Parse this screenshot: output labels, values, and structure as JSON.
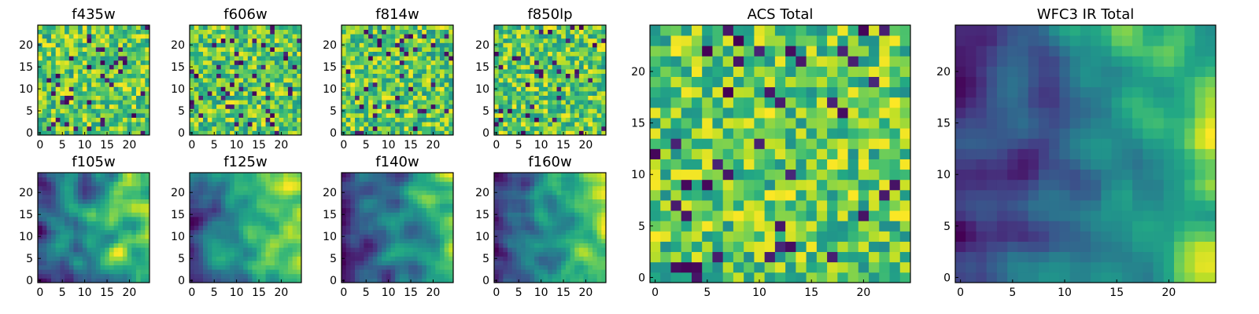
{
  "chart_data": [
    {
      "type": "heatmap",
      "title": "f435w",
      "xlim": [
        -0.5,
        24.5
      ],
      "ylim": [
        -0.5,
        24.5
      ],
      "xticks": [
        0,
        5,
        10,
        15,
        20
      ],
      "yticks": [
        0,
        5,
        10,
        15,
        20
      ],
      "grid_size": [
        25,
        25
      ],
      "colormap": "viridis",
      "value_range": [
        0,
        1
      ],
      "smoothness": "noisy",
      "seed": 11,
      "values": []
    },
    {
      "type": "heatmap",
      "title": "f606w",
      "xlim": [
        -0.5,
        24.5
      ],
      "ylim": [
        -0.5,
        24.5
      ],
      "xticks": [
        0,
        5,
        10,
        15,
        20
      ],
      "yticks": [
        0,
        5,
        10,
        15,
        20
      ],
      "grid_size": [
        25,
        25
      ],
      "colormap": "viridis",
      "value_range": [
        0,
        1
      ],
      "smoothness": "noisy",
      "seed": 23,
      "values": []
    },
    {
      "type": "heatmap",
      "title": "f814w",
      "xlim": [
        -0.5,
        24.5
      ],
      "ylim": [
        -0.5,
        24.5
      ],
      "xticks": [
        0,
        5,
        10,
        15,
        20
      ],
      "yticks": [
        0,
        5,
        10,
        15,
        20
      ],
      "grid_size": [
        25,
        25
      ],
      "colormap": "viridis",
      "value_range": [
        0,
        1
      ],
      "smoothness": "noisy",
      "seed": 37,
      "values": []
    },
    {
      "type": "heatmap",
      "title": "f850lp",
      "xlim": [
        -0.5,
        24.5
      ],
      "ylim": [
        -0.5,
        24.5
      ],
      "xticks": [
        0,
        5,
        10,
        15,
        20
      ],
      "yticks": [
        0,
        5,
        10,
        15,
        20
      ],
      "grid_size": [
        25,
        25
      ],
      "colormap": "viridis",
      "value_range": [
        0,
        1
      ],
      "smoothness": "noisy",
      "seed": 41,
      "values": []
    },
    {
      "type": "heatmap",
      "title": "f105w",
      "xlim": [
        -0.5,
        24.5
      ],
      "ylim": [
        -0.5,
        24.5
      ],
      "xticks": [
        0,
        5,
        10,
        15,
        20
      ],
      "yticks": [
        0,
        5,
        10,
        15,
        20
      ],
      "grid_size": [
        25,
        25
      ],
      "colormap": "viridis",
      "value_range": [
        0,
        1
      ],
      "smoothness": "smooth",
      "seed": 53,
      "values": []
    },
    {
      "type": "heatmap",
      "title": "f125w",
      "xlim": [
        -0.5,
        24.5
      ],
      "ylim": [
        -0.5,
        24.5
      ],
      "xticks": [
        0,
        5,
        10,
        15,
        20
      ],
      "yticks": [
        0,
        5,
        10,
        15,
        20
      ],
      "grid_size": [
        25,
        25
      ],
      "colormap": "viridis",
      "value_range": [
        0,
        1
      ],
      "smoothness": "smooth",
      "seed": 67,
      "values": []
    },
    {
      "type": "heatmap",
      "title": "f140w",
      "xlim": [
        -0.5,
        24.5
      ],
      "ylim": [
        -0.5,
        24.5
      ],
      "xticks": [
        0,
        5,
        10,
        15,
        20
      ],
      "yticks": [
        0,
        5,
        10,
        15,
        20
      ],
      "grid_size": [
        25,
        25
      ],
      "colormap": "viridis",
      "value_range": [
        0,
        1
      ],
      "smoothness": "smooth",
      "seed": 71,
      "values": []
    },
    {
      "type": "heatmap",
      "title": "f160w",
      "xlim": [
        -0.5,
        24.5
      ],
      "ylim": [
        -0.5,
        24.5
      ],
      "xticks": [
        0,
        5,
        10,
        15,
        20
      ],
      "yticks": [
        0,
        5,
        10,
        15,
        20
      ],
      "grid_size": [
        25,
        25
      ],
      "colormap": "viridis",
      "value_range": [
        0,
        1
      ],
      "smoothness": "smooth",
      "seed": 89,
      "values": []
    },
    {
      "type": "heatmap",
      "title": "ACS Total",
      "xlim": [
        -0.5,
        24.5
      ],
      "ylim": [
        -0.5,
        24.5
      ],
      "xticks": [
        0,
        5,
        10,
        15,
        20
      ],
      "yticks": [
        0,
        5,
        10,
        15,
        20
      ],
      "grid_size": [
        25,
        25
      ],
      "colormap": "viridis",
      "value_range": [
        0,
        1
      ],
      "smoothness": "noisy",
      "seed": 97,
      "values": []
    },
    {
      "type": "heatmap",
      "title": "WFC3 IR Total",
      "xlim": [
        -0.5,
        24.5
      ],
      "ylim": [
        -0.5,
        24.5
      ],
      "xticks": [
        0,
        5,
        10,
        15,
        20
      ],
      "yticks": [
        0,
        5,
        10,
        15,
        20
      ],
      "grid_size": [
        25,
        25
      ],
      "colormap": "viridis",
      "value_range": [
        0,
        1
      ],
      "smoothness": "smooth",
      "seed": 103,
      "values": []
    }
  ]
}
